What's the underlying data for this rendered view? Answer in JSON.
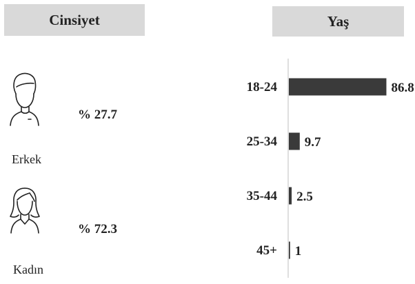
{
  "gender_panel": {
    "title": "Cinsiyet",
    "items": [
      {
        "label": "Erkek",
        "percent_text": "% 27.7",
        "icon": "male-person-icon"
      },
      {
        "label": "Kadın",
        "percent_text": "% 72.3",
        "icon": "female-person-icon"
      }
    ]
  },
  "age_panel": {
    "title": "Yaş"
  },
  "colors": {
    "bar": "#3a3a3a",
    "header_bg": "#d9d9d9",
    "axis": "#bfbfbf"
  },
  "chart_data": [
    {
      "type": "bar",
      "orientation": "horizontal",
      "title": "Cinsiyet",
      "categories": [
        "Erkek",
        "Kadın"
      ],
      "values": [
        27.7,
        72.3
      ]
    },
    {
      "type": "bar",
      "orientation": "horizontal",
      "title": "Yaş",
      "categories": [
        "18-24",
        "25-34",
        "35-44",
        "45+"
      ],
      "values": [
        86.8,
        9.7,
        2.5,
        1
      ],
      "value_labels": [
        "86.8",
        "9.7",
        "2.5",
        "1"
      ],
      "xlim": [
        0,
        100
      ],
      "grid": false
    }
  ]
}
